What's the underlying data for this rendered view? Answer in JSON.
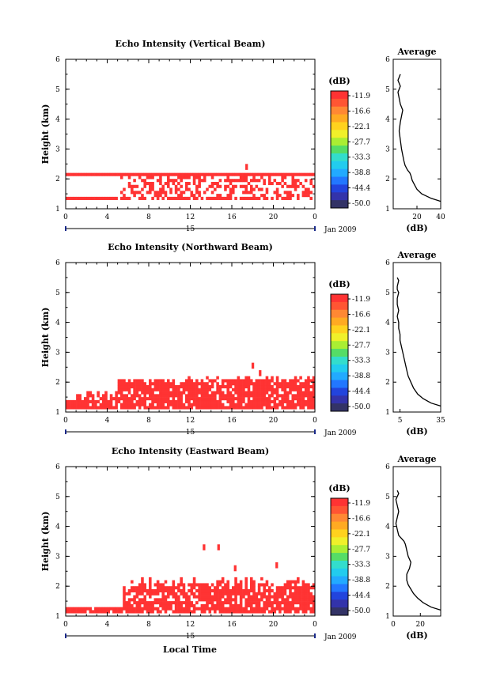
{
  "figure": {
    "xlabel": "Local Time",
    "date_label": "Jan 2009",
    "day_label": "15",
    "colorbar_unit": "(dB)",
    "colorbar_ticks": [
      "-11.9",
      "-16.6",
      "-22.1",
      "-27.7",
      "-33.3",
      "-38.8",
      "-44.4",
      "-50.0"
    ],
    "colorbar_colors": [
      "#ff3333",
      "#ff5533",
      "#ff8833",
      "#ffaa22",
      "#ffd21e",
      "#f0f02a",
      "#aaee33",
      "#55dd66",
      "#33ddcc",
      "#22ccee",
      "#22aaff",
      "#2277ff",
      "#2244dd",
      "#3333aa",
      "#333366"
    ],
    "echo_color": "#ff3333"
  },
  "chart_data": [
    {
      "type": "heatmap",
      "title": "Echo Intensity (Vertical Beam)",
      "xlabel": "",
      "ylabel": "Height (km)",
      "xlim": [
        0,
        24
      ],
      "ylim": [
        1,
        6
      ],
      "xticks": [
        "0",
        "4",
        "8",
        "12",
        "16",
        "20",
        "0"
      ],
      "yticks": [
        "1",
        "2",
        "3",
        "4",
        "5",
        "6"
      ],
      "echo_top_km": [
        2.15,
        2.15,
        2.15,
        2.15,
        2.15,
        2.15,
        2.15,
        2.15,
        2.15,
        2.15,
        2.15,
        2.15,
        2.15,
        2.15,
        2.15,
        2.15,
        2.15,
        2.15,
        2.15,
        2.15,
        2.15,
        2.15,
        2.15,
        2.15,
        2.15,
        2.15,
        2.15,
        2.15,
        2.15,
        2.15,
        2.15,
        2.15,
        2.15,
        2.15,
        2.15,
        2.15,
        2.15,
        2.15,
        2.15,
        2.15,
        2.15,
        2.15,
        2.15,
        2.15,
        2.15,
        2.15,
        2.15,
        2.15,
        2.15,
        2.15,
        2.15,
        2.15,
        2.15,
        2.15,
        2.15,
        2.15,
        2.15,
        2.15,
        2.15,
        2.15,
        2.15,
        2.15,
        2.15,
        2.15,
        2.15,
        2.15,
        2.15,
        2.15,
        2.15,
        2.15,
        2.15,
        2.15,
        2.15,
        2.15,
        2.15,
        2.15,
        2.15,
        2.15,
        2.15,
        2.15,
        2.15,
        2.15,
        2.15,
        2.15,
        2.15,
        2.15,
        2.15,
        2.15,
        2.15,
        2.15,
        2.15,
        2.15,
        2.15,
        2.15,
        2.15,
        2.15
      ],
      "profile": {
        "title": "Average",
        "xlabel": "(dB)",
        "xlim": [
          0,
          40
        ],
        "ylim": [
          1,
          6
        ],
        "xticks": [
          "20",
          "40"
        ],
        "xtick_values": [
          20,
          40
        ],
        "yticks": [
          "1",
          "2",
          "3",
          "4",
          "5",
          "6"
        ],
        "x": [
          40,
          32,
          24,
          20,
          18,
          16,
          15,
          14,
          12,
          10,
          9,
          8,
          7,
          6,
          5,
          6,
          7,
          8,
          6,
          5,
          4,
          5,
          6,
          5,
          4,
          5,
          6
        ],
        "y": [
          1.25,
          1.35,
          1.5,
          1.65,
          1.8,
          1.95,
          2.1,
          2.2,
          2.3,
          2.45,
          2.6,
          2.8,
          3.0,
          3.3,
          3.6,
          3.9,
          4.1,
          4.3,
          4.5,
          4.7,
          4.9,
          5.0,
          5.1,
          5.2,
          5.3,
          5.4,
          5.5
        ]
      }
    },
    {
      "type": "heatmap",
      "title": "Echo Intensity (Northward Beam)",
      "xlabel": "",
      "ylabel": "Height (km)",
      "xlim": [
        0,
        24
      ],
      "ylim": [
        1,
        6
      ],
      "xticks": [
        "0",
        "4",
        "8",
        "12",
        "16",
        "20",
        "0"
      ],
      "yticks": [
        "1",
        "2",
        "3",
        "4",
        "5",
        "6"
      ],
      "profile": {
        "title": "Average",
        "xlabel": "(dB)",
        "xlim": [
          0,
          35
        ],
        "ylim": [
          1,
          6
        ],
        "xticks": [
          "5",
          "35"
        ],
        "xtick_values": [
          5,
          35
        ],
        "yticks": [
          "1",
          "2",
          "3",
          "4",
          "5",
          "6"
        ],
        "x": [
          35,
          28,
          22,
          18,
          15,
          13,
          11,
          10,
          9,
          8,
          7,
          6,
          5,
          5,
          4,
          4,
          3,
          4,
          3,
          3,
          4,
          3,
          3,
          4,
          3
        ],
        "y": [
          1.2,
          1.3,
          1.45,
          1.6,
          1.8,
          2.0,
          2.2,
          2.4,
          2.6,
          2.8,
          3.0,
          3.2,
          3.4,
          3.6,
          3.8,
          4.0,
          4.2,
          4.4,
          4.6,
          4.8,
          5.0,
          5.1,
          5.2,
          5.4,
          5.5
        ]
      }
    },
    {
      "type": "heatmap",
      "title": "Echo Intensity (Eastward Beam)",
      "xlabel": "Local Time",
      "ylabel": "Height (km)",
      "xlim": [
        0,
        24
      ],
      "ylim": [
        1,
        6
      ],
      "xticks": [
        "0",
        "4",
        "8",
        "12",
        "16",
        "20",
        "0"
      ],
      "yticks": [
        "1",
        "2",
        "3",
        "4",
        "5",
        "6"
      ],
      "profile": {
        "title": "Average",
        "xlabel": "(dB)",
        "xlim": [
          0,
          35
        ],
        "ylim": [
          1,
          6
        ],
        "xticks": [
          "0",
          "20"
        ],
        "xtick_values": [
          0,
          20
        ],
        "yticks": [
          "1",
          "2",
          "3",
          "4",
          "5",
          "6"
        ],
        "x": [
          35,
          28,
          22,
          18,
          15,
          13,
          11,
          10,
          10,
          12,
          13,
          11,
          10,
          9,
          8,
          6,
          4,
          3,
          2,
          3,
          4,
          3,
          2,
          3,
          4,
          3
        ],
        "y": [
          1.2,
          1.3,
          1.45,
          1.6,
          1.75,
          1.9,
          2.05,
          2.2,
          2.4,
          2.6,
          2.8,
          3.0,
          3.2,
          3.4,
          3.5,
          3.6,
          3.7,
          3.9,
          4.1,
          4.3,
          4.5,
          4.7,
          4.9,
          5.0,
          5.1,
          5.2
        ]
      }
    }
  ]
}
